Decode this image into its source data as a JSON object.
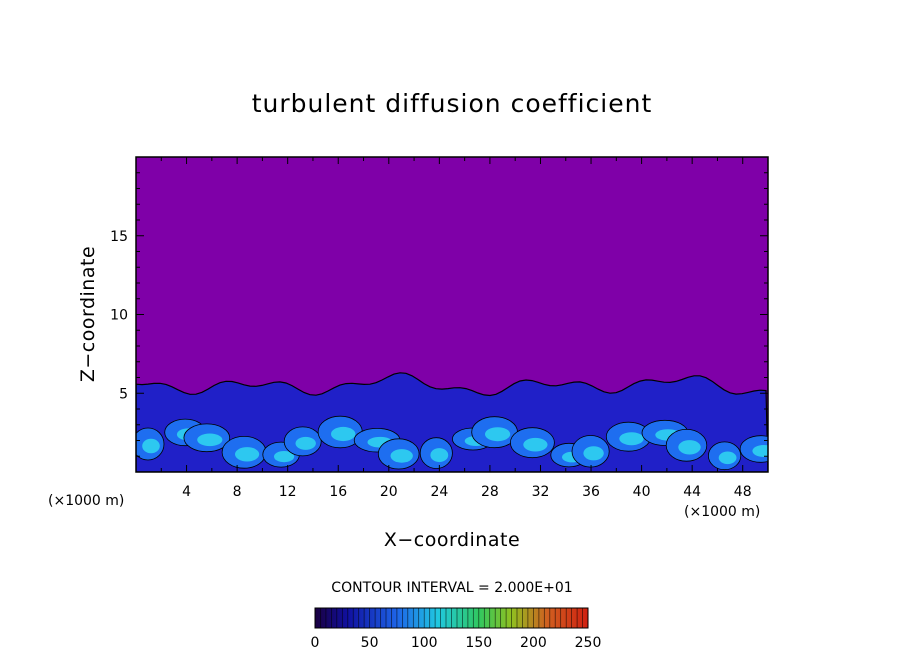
{
  "chart_data": {
    "type": "heatmap",
    "title": "turbulent diffusion coefficient",
    "xlabel": "X−coordinate",
    "ylabel": "Z−coordinate",
    "x_unit": "(×1000 m)",
    "y_unit": "(×1000 m)",
    "xlim": [
      0,
      50
    ],
    "ylim": [
      0,
      20
    ],
    "x_ticks": [
      "4",
      "8",
      "12",
      "16",
      "20",
      "24",
      "28",
      "32",
      "36",
      "40",
      "44",
      "48"
    ],
    "x_tick_values": [
      4,
      8,
      12,
      16,
      20,
      24,
      28,
      32,
      36,
      40,
      44,
      48
    ],
    "y_ticks": [
      "5",
      "10",
      "15"
    ],
    "y_tick_values": [
      5,
      10,
      15
    ],
    "background_value": 0,
    "turbulent_layer_top": 5.5,
    "contour_interval": "CONTOUR INTERVAL = 2.000E+01",
    "colorbar": {
      "min": 0,
      "max": 250,
      "ticks": [
        "0",
        "50",
        "100",
        "150",
        "200",
        "250"
      ],
      "tick_values": [
        0,
        50,
        100,
        150,
        200,
        250
      ]
    },
    "colors": {
      "background": "#7f00a8",
      "low": "#2020c8",
      "mid": "#1e6ef0",
      "high": "#30d8f0"
    }
  }
}
